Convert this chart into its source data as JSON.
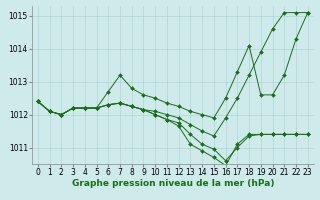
{
  "xlabel_label": "Graphe pression niveau de la mer (hPa)",
  "x": [
    0,
    1,
    2,
    3,
    4,
    5,
    6,
    7,
    8,
    9,
    10,
    11,
    12,
    13,
    14,
    15,
    16,
    17,
    18,
    19,
    20,
    21,
    22,
    23
  ],
  "series": [
    [
      1012.4,
      1012.1,
      1012.0,
      1012.2,
      1012.2,
      1012.2,
      1012.7,
      1013.2,
      1012.8,
      1012.6,
      1012.5,
      1012.35,
      1012.25,
      1012.1,
      1012.0,
      1011.9,
      1012.5,
      1013.3,
      1014.1,
      1012.6,
      1012.6,
      1013.2,
      1014.3,
      1015.1
    ],
    [
      1012.4,
      1012.1,
      1012.0,
      1012.2,
      1012.2,
      1012.2,
      1012.3,
      1012.35,
      1012.25,
      1012.15,
      1012.1,
      1012.0,
      1011.9,
      1011.7,
      1011.5,
      1011.35,
      1011.9,
      1012.5,
      1013.2,
      1013.9,
      1014.6,
      1015.1,
      1015.1,
      1015.1
    ],
    [
      1012.4,
      1012.1,
      1012.0,
      1012.2,
      1012.2,
      1012.2,
      1012.3,
      1012.35,
      1012.25,
      1012.15,
      1012.0,
      1011.85,
      1011.75,
      1011.4,
      1011.1,
      1010.95,
      1010.6,
      1011.0,
      1011.35,
      1011.4,
      1011.4,
      1011.4,
      1011.4,
      1011.4
    ],
    [
      1012.4,
      1012.1,
      1012.0,
      1012.2,
      1012.2,
      1012.2,
      1012.3,
      1012.35,
      1012.25,
      1012.15,
      1012.0,
      1011.85,
      1011.65,
      1011.1,
      1010.9,
      1010.7,
      1010.45,
      1011.1,
      1011.4,
      1011.4,
      1011.4,
      1011.4,
      1011.4,
      1011.4
    ]
  ],
  "markers_series": [
    0,
    1,
    2,
    3
  ],
  "marker_indices": {
    "0": [
      0,
      1,
      2,
      3,
      4,
      5,
      6,
      7,
      8,
      9,
      10,
      11,
      12,
      13,
      14,
      15,
      16,
      17,
      18,
      19,
      20,
      21,
      22,
      23
    ],
    "1": [
      0,
      1,
      2,
      3,
      4,
      5,
      6,
      7,
      8,
      9,
      10,
      11,
      12,
      13,
      14,
      15,
      16,
      17,
      18,
      19,
      20,
      21,
      22,
      23
    ],
    "2": [
      0,
      1,
      2,
      3,
      4,
      5,
      6,
      7,
      8,
      9,
      10,
      11,
      12,
      13,
      14,
      15,
      16,
      17,
      18,
      19,
      20,
      21,
      22,
      23
    ],
    "3": [
      0,
      1,
      2,
      3,
      4,
      5,
      6,
      7,
      8,
      9,
      10,
      11,
      12,
      13,
      14,
      15,
      16,
      17,
      18,
      19,
      20,
      21,
      22,
      23
    ]
  },
  "line_color": "#1a6e1a",
  "marker": "D",
  "marker_size": 2.0,
  "linewidth": 0.7,
  "bg_color": "#ceeaea",
  "grid_color": "#a8d0d0",
  "ylim": [
    1010.5,
    1015.3
  ],
  "yticks": [
    1011,
    1012,
    1013,
    1014,
    1015
  ],
  "xticks": [
    0,
    1,
    2,
    3,
    4,
    5,
    6,
    7,
    8,
    9,
    10,
    11,
    12,
    13,
    14,
    15,
    16,
    17,
    18,
    19,
    20,
    21,
    22,
    23
  ],
  "xlabel_color": "#1a6e1a",
  "tick_fontsize": 5.5,
  "label_fontsize": 6.5
}
